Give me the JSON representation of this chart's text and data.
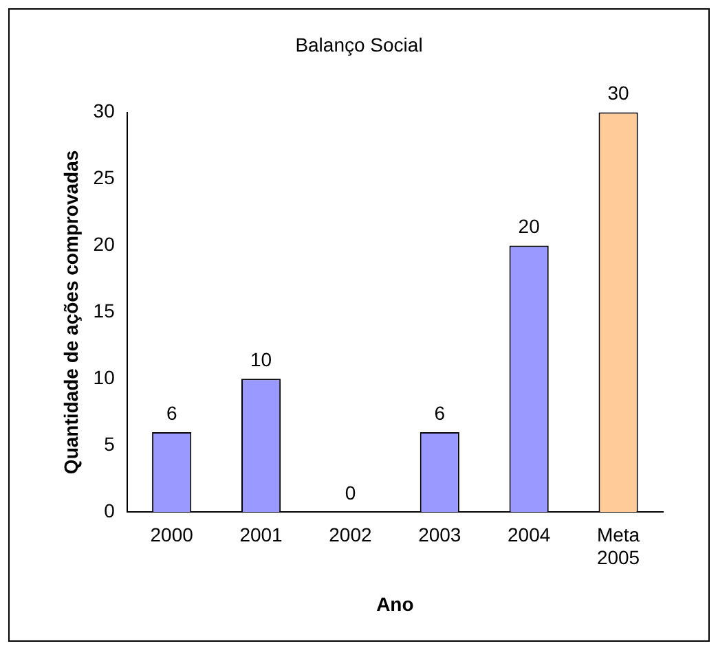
{
  "chart_data": {
    "type": "bar",
    "title": "Balanço Social",
    "xlabel": "Ano",
    "ylabel": "Quantidade de ações comprovadas",
    "categories": [
      "2000",
      "2001",
      "2002",
      "2003",
      "2004",
      "Meta 2005"
    ],
    "values": [
      6,
      10,
      0,
      6,
      20,
      30
    ],
    "colors": [
      "#9999ff",
      "#9999ff",
      "#9999ff",
      "#9999ff",
      "#9999ff",
      "#ffcc99"
    ],
    "ylim": [
      0,
      30
    ],
    "yticks": [
      0,
      5,
      10,
      15,
      20,
      25,
      30
    ],
    "grid": false,
    "legend": false,
    "data_labels": true
  }
}
